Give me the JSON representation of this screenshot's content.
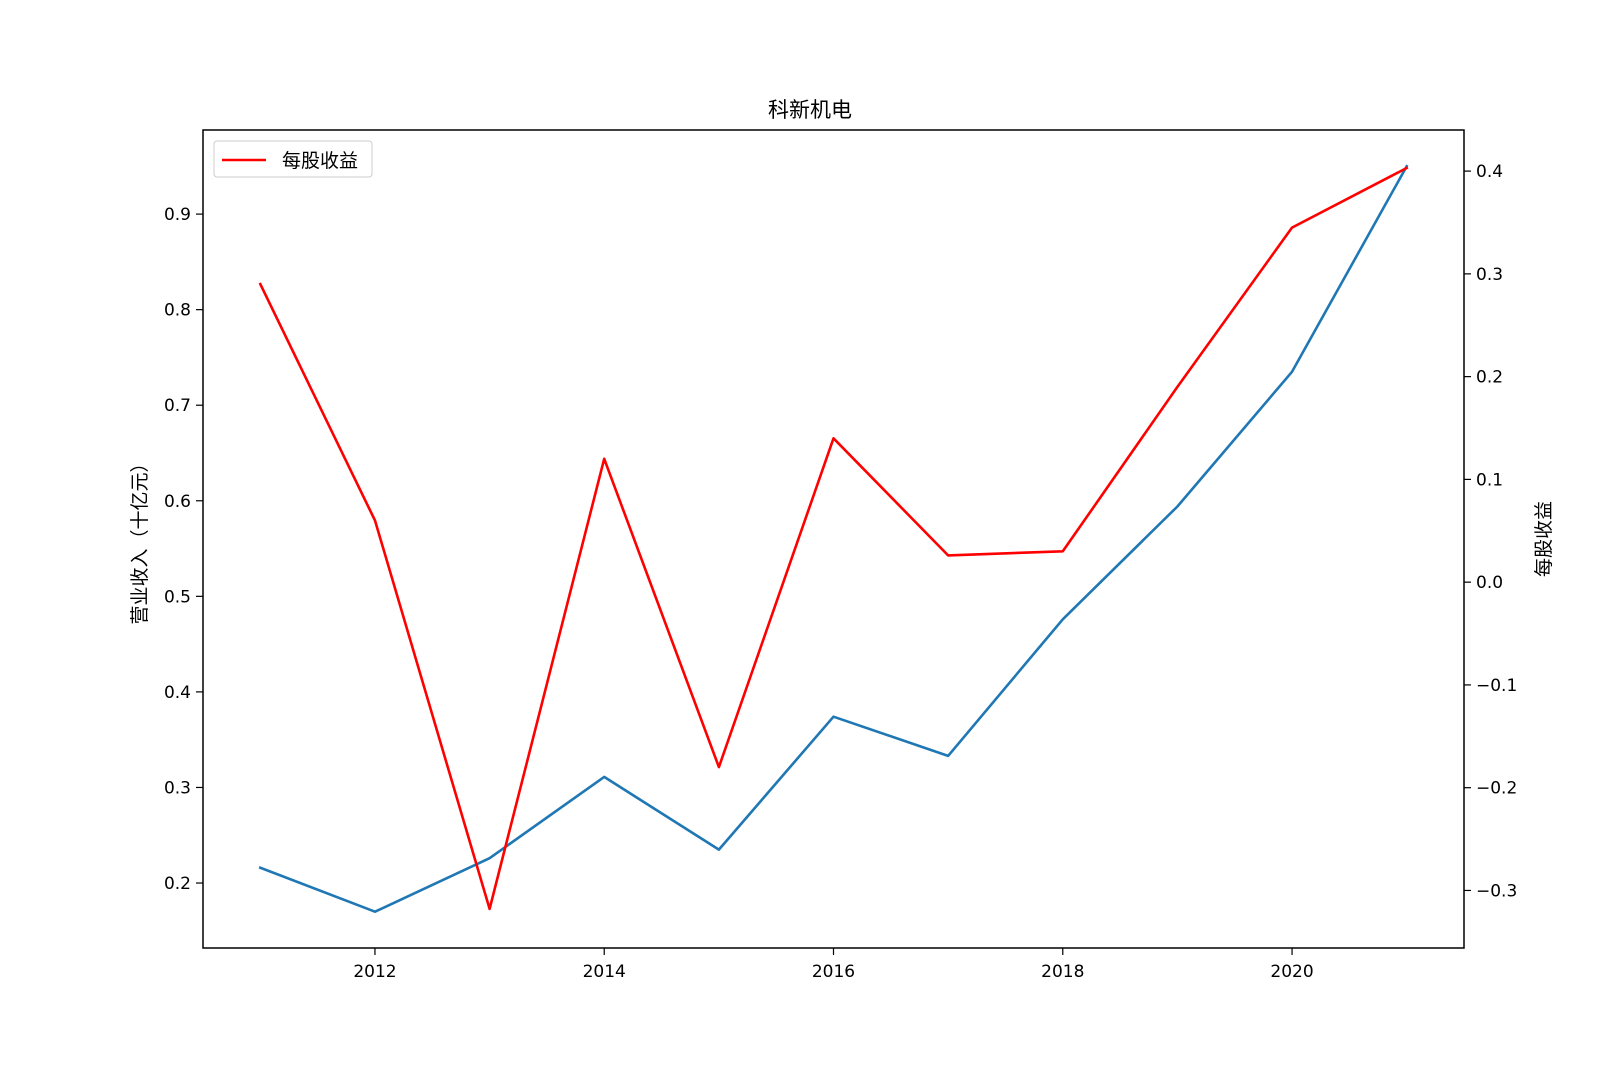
{
  "chart_data": {
    "type": "line",
    "title": "科新机电",
    "x": [
      2011,
      2012,
      2013,
      2014,
      2015,
      2016,
      2017,
      2018,
      2019,
      2020,
      2021
    ],
    "x_ticks": [
      "2012",
      "2014",
      "2016",
      "2018",
      "2020"
    ],
    "xlim": [
      2010.5,
      2021.5
    ],
    "left_axis": {
      "label": "营业收入（十亿元）",
      "ylim": [
        0.132,
        0.988
      ],
      "ticks": [
        "0.2",
        "0.3",
        "0.4",
        "0.5",
        "0.6",
        "0.7",
        "0.8",
        "0.9"
      ]
    },
    "right_axis": {
      "label": "每股收益",
      "ylim": [
        -0.356,
        0.44
      ],
      "ticks": [
        "−0.3",
        "−0.2",
        "−0.1",
        "0.0",
        "0.1",
        "0.2",
        "0.3",
        "0.4"
      ]
    },
    "series": [
      {
        "axis": "left",
        "color": "#1f77b4",
        "values": [
          0.216,
          0.17,
          0.226,
          0.311,
          0.235,
          0.374,
          0.333,
          0.476,
          0.594,
          0.735,
          0.95
        ]
      },
      {
        "name": "每股收益",
        "axis": "right",
        "color": "#ff0000",
        "values": [
          0.29,
          0.06,
          -0.318,
          0.12,
          -0.18,
          0.14,
          0.026,
          0.03,
          0.19,
          0.345,
          0.403
        ]
      }
    ],
    "legend": {
      "position": "upper-left",
      "entries": [
        "每股收益"
      ]
    },
    "grid": false
  }
}
